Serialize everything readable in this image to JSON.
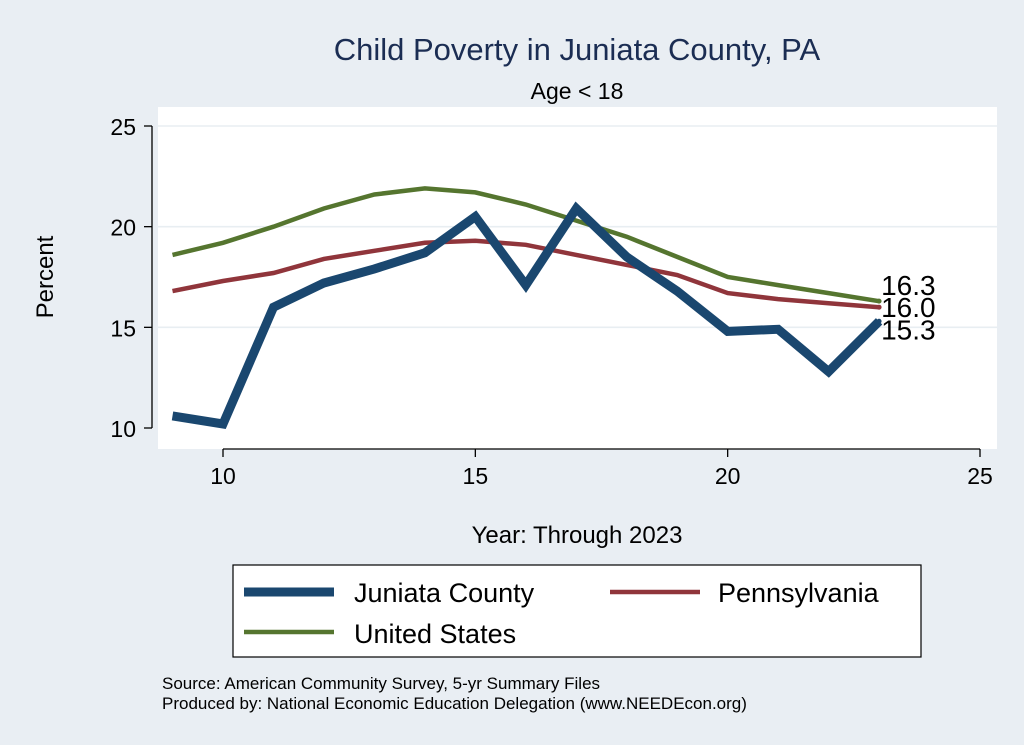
{
  "chart_data": {
    "type": "line",
    "title": "Child Poverty in Juniata County, PA",
    "subtitle": "Age < 18",
    "xlabel": "Year: Through 2023",
    "ylabel": "Percent",
    "xlim": [
      9,
      25
    ],
    "ylim": [
      10,
      25
    ],
    "x_ticks": [
      10,
      15,
      20,
      25
    ],
    "y_ticks": [
      10,
      15,
      20,
      25
    ],
    "grid": true,
    "legend_position": "bottom",
    "x": [
      9,
      10,
      11,
      12,
      13,
      14,
      15,
      16,
      17,
      18,
      19,
      20,
      21,
      22,
      23
    ],
    "series": [
      {
        "name": "Juniata County",
        "color": "#1a476f",
        "values": [
          10.6,
          10.2,
          16.0,
          17.2,
          17.9,
          18.7,
          20.5,
          17.1,
          20.9,
          18.5,
          16.8,
          14.8,
          14.9,
          12.8,
          15.3
        ],
        "end_label": "15.3"
      },
      {
        "name": "Pennsylvania",
        "color": "#90353b",
        "values": [
          16.8,
          17.3,
          17.7,
          18.4,
          18.8,
          19.2,
          19.3,
          19.1,
          18.6,
          18.1,
          17.6,
          16.7,
          16.4,
          16.2,
          16.0
        ],
        "end_label": "16.0"
      },
      {
        "name": "United States",
        "color": "#55752f",
        "values": [
          18.6,
          19.2,
          20.0,
          20.9,
          21.6,
          21.9,
          21.7,
          21.1,
          20.3,
          19.5,
          18.5,
          17.5,
          17.1,
          16.7,
          16.3
        ],
        "end_label": "16.3"
      }
    ],
    "notes": [
      "Source: American Community Survey, 5-yr Summary Files",
      "Produced by: National Economic Education Delegation (www.NEEDEcon.org)"
    ]
  }
}
